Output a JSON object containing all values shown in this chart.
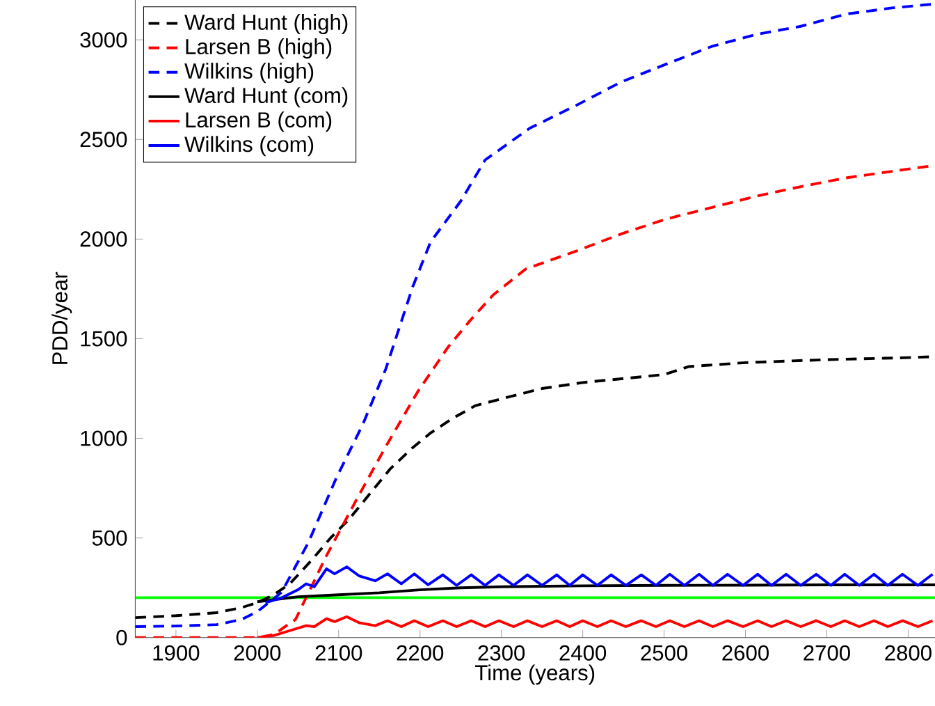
{
  "chart_data": {
    "type": "line",
    "xlabel": "Time (years)",
    "ylabel": "PDD/year",
    "xlim": [
      1850,
      2833
    ],
    "ylim": [
      0,
      3200
    ],
    "xticks": [
      1900,
      2000,
      2100,
      2200,
      2300,
      2400,
      2500,
      2600,
      2700,
      2800
    ],
    "yticks": [
      0,
      500,
      1000,
      1500,
      2000,
      2500,
      3000
    ],
    "grid": false,
    "legend": "top left",
    "marker": "none",
    "ref_lines": [
      {
        "axis": "y",
        "value": 200,
        "color": "#00ff00"
      }
    ],
    "series": [
      {
        "name": "Ward Hunt (high)",
        "color": "#000000",
        "line_style": "dashed",
        "x": [
          1850,
          1900,
          1950,
          1980,
          2000,
          2020,
          2040,
          2066,
          2090,
          2113,
          2140,
          2163,
          2190,
          2213,
          2240,
          2268,
          2313,
          2350,
          2400,
          2450,
          2500,
          2530,
          2600,
          2700,
          2800,
          2833
        ],
        "values": [
          100,
          110,
          125,
          150,
          175,
          215,
          270,
          385,
          500,
          595,
          730,
          845,
          950,
          1027,
          1100,
          1164,
          1212,
          1250,
          1280,
          1300,
          1320,
          1360,
          1380,
          1395,
          1405,
          1410
        ]
      },
      {
        "name": "Larsen B (high)",
        "color": "#ff0000",
        "line_style": "dashed",
        "x": [
          1850,
          1950,
          2000,
          2020,
          2047,
          2085,
          2124,
          2158,
          2197,
          2235,
          2263,
          2290,
          2330,
          2392,
          2450,
          2502,
          2560,
          2613,
          2670,
          2725,
          2780,
          2833
        ],
        "values": [
          0,
          0,
          0,
          15,
          91,
          411,
          708,
          959,
          1233,
          1461,
          1598,
          1720,
          1850,
          1940,
          2030,
          2100,
          2160,
          2215,
          2265,
          2308,
          2340,
          2370
        ]
      },
      {
        "name": "Wilkins (high)",
        "color": "#0000ff",
        "line_style": "dashed",
        "x": [
          1850,
          1900,
          1950,
          1980,
          2000,
          2030,
          2063,
          2097,
          2130,
          2158,
          2191,
          2213,
          2250,
          2280,
          2335,
          2392,
          2447,
          2502,
          2558,
          2613,
          2668,
          2725,
          2780,
          2833
        ],
        "values": [
          55,
          58,
          65,
          90,
          130,
          228,
          479,
          800,
          1073,
          1349,
          1760,
          1986,
          2190,
          2397,
          2557,
          2671,
          2788,
          2877,
          2966,
          3027,
          3068,
          3130,
          3160,
          3180
        ]
      },
      {
        "name": "Ward Hunt (com)",
        "color": "#000000",
        "line_style": "solid",
        "x": [
          2000,
          2050,
          2100,
          2150,
          2200,
          2250,
          2300,
          2400,
          2500,
          2600,
          2700,
          2833
        ],
        "values": [
          180,
          205,
          215,
          225,
          240,
          250,
          255,
          260,
          262,
          263,
          265,
          265
        ]
      },
      {
        "name": "Larsen B (com)",
        "color": "#ff0000",
        "line_style": "solid",
        "x": [
          2000,
          2020,
          2040,
          2060,
          2070,
          2085,
          2095,
          2110,
          2125,
          2145,
          2160,
          2177,
          2193,
          2210,
          2228,
          2245,
          2263,
          2280,
          2297,
          2315,
          2332,
          2350,
          2368,
          2384,
          2400,
          2418,
          2435,
          2453,
          2472,
          2490,
          2507,
          2525,
          2543,
          2560,
          2578,
          2597,
          2615,
          2632,
          2650,
          2668,
          2687,
          2705,
          2722,
          2740,
          2758,
          2775,
          2793,
          2812,
          2830
        ],
        "values": [
          0,
          10,
          35,
          60,
          55,
          95,
          80,
          105,
          75,
          60,
          85,
          55,
          85,
          55,
          85,
          55,
          85,
          55,
          85,
          55,
          85,
          55,
          85,
          55,
          85,
          55,
          85,
          55,
          85,
          55,
          85,
          55,
          85,
          55,
          85,
          55,
          85,
          55,
          85,
          55,
          85,
          55,
          85,
          55,
          85,
          55,
          85,
          55,
          85
        ]
      },
      {
        "name": "Wilkins (com)",
        "color": "#0000ff",
        "line_style": "solid",
        "x": [
          2010,
          2030,
          2050,
          2060,
          2070,
          2085,
          2095,
          2110,
          2125,
          2145,
          2160,
          2177,
          2193,
          2210,
          2228,
          2245,
          2263,
          2280,
          2297,
          2315,
          2332,
          2350,
          2368,
          2384,
          2400,
          2418,
          2435,
          2453,
          2472,
          2490,
          2507,
          2525,
          2543,
          2560,
          2578,
          2597,
          2615,
          2632,
          2650,
          2668,
          2687,
          2705,
          2722,
          2740,
          2758,
          2775,
          2793,
          2812,
          2830
        ],
        "values": [
          175,
          200,
          240,
          270,
          255,
          345,
          320,
          355,
          310,
          285,
          320,
          270,
          320,
          265,
          315,
          262,
          315,
          262,
          315,
          262,
          315,
          262,
          315,
          262,
          315,
          262,
          315,
          262,
          315,
          262,
          318,
          262,
          318,
          262,
          318,
          262,
          318,
          262,
          318,
          262,
          318,
          262,
          318,
          262,
          318,
          262,
          318,
          262,
          318
        ]
      }
    ]
  }
}
